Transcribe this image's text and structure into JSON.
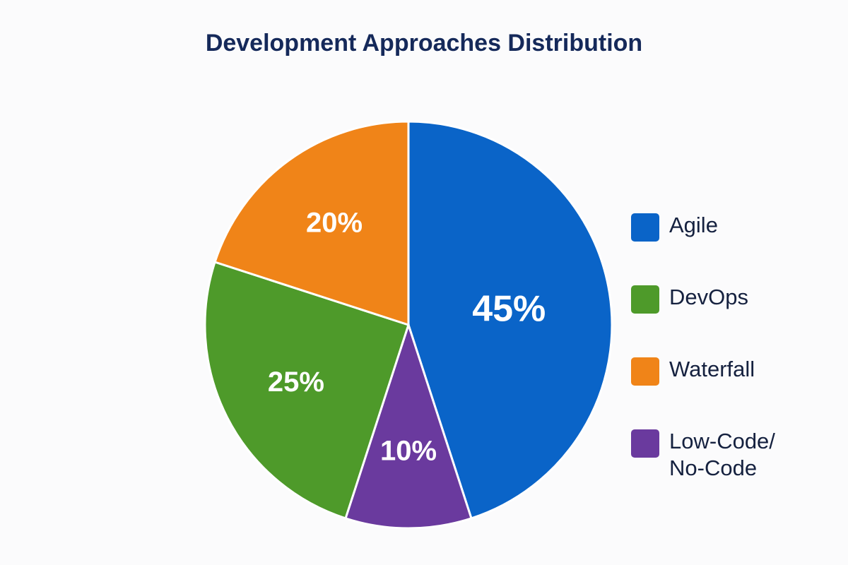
{
  "chart_data": {
    "type": "pie",
    "title": "Development Approaches Distribution",
    "slices": [
      {
        "label": "Agile",
        "value": 45,
        "data_label": "45%",
        "color": "#0a64c8"
      },
      {
        "label": "Low-Code/ No-Code",
        "value": 10,
        "data_label": "10%",
        "color": "#6a3a9e"
      },
      {
        "label": "DevOps",
        "value": 25,
        "data_label": "25%",
        "color": "#4e9a2a"
      },
      {
        "label": "Waterfall",
        "value": 20,
        "data_label": "20%",
        "color": "#f08418"
      }
    ],
    "legend": {
      "placement": "right",
      "entries": [
        {
          "label": "Agile",
          "color": "#0a64c8"
        },
        {
          "label": "DevOps",
          "color": "#4e9a2a"
        },
        {
          "label": "Waterfall",
          "color": "#f08418"
        },
        {
          "label": "Low-Code/ No-Code",
          "color": "#6a3a9e"
        }
      ]
    }
  }
}
